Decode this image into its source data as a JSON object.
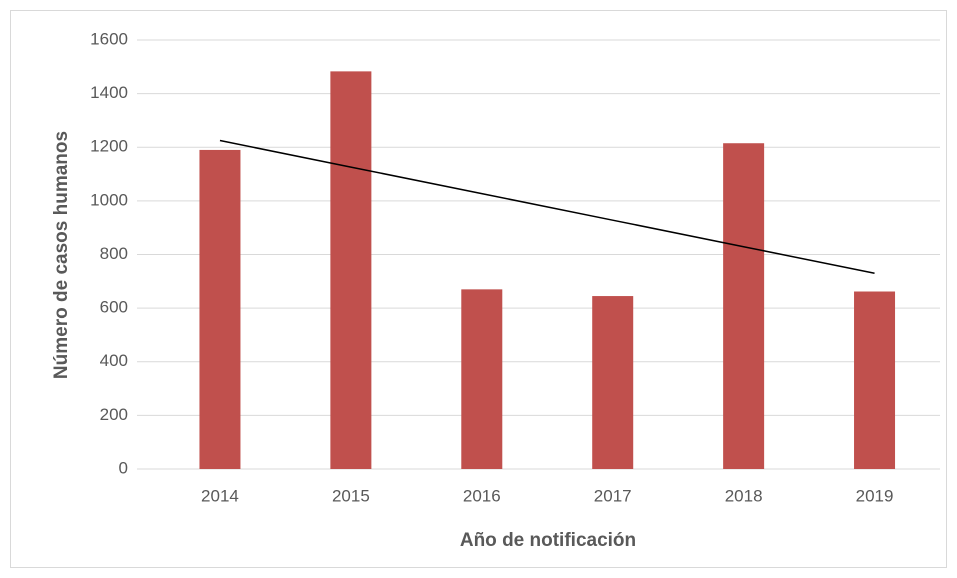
{
  "chart_data": {
    "type": "bar",
    "xlabel": "Año de notificación",
    "ylabel": "Número de casos humanos",
    "categories": [
      "2014",
      "2015",
      "2016",
      "2017",
      "2018",
      "2019"
    ],
    "values": [
      1190,
      1483,
      670,
      645,
      1215,
      662
    ],
    "color": "#c0504d",
    "trendline": {
      "color": "#000000",
      "values": [
        1225,
        1126,
        1027,
        928,
        829,
        730
      ]
    },
    "ylim": [
      0,
      1600
    ],
    "yticks": [
      0,
      200,
      400,
      600,
      800,
      1000,
      1200,
      1400,
      1600
    ],
    "grid": true
  }
}
